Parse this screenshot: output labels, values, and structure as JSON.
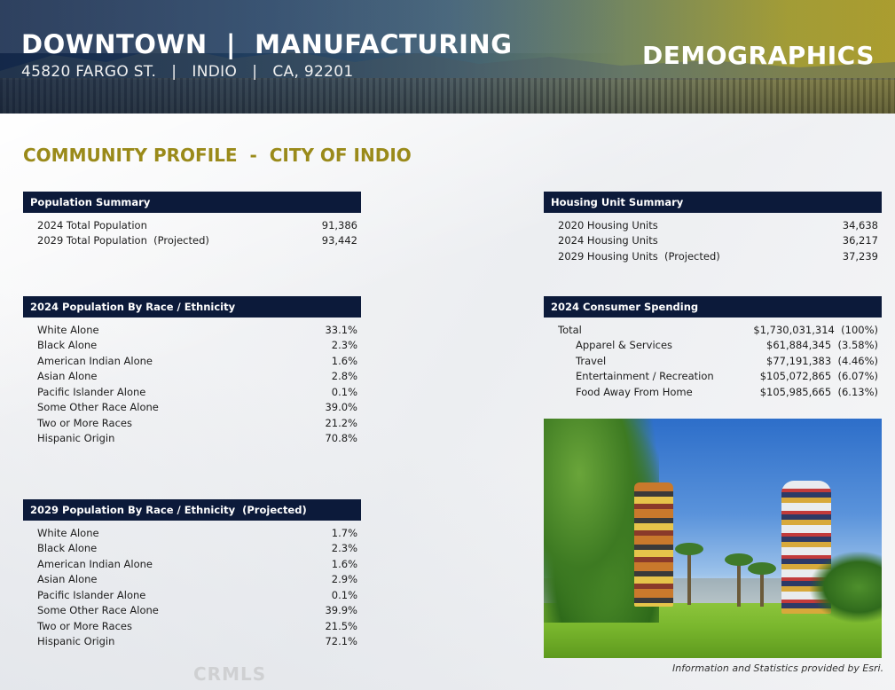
{
  "header": {
    "title": "DOWNTOWN  |  MANUFACTURING",
    "address": "45820 FARGO ST.   |   INDIO   |   CA, 92201",
    "badge": "DEMOGRAPHICS"
  },
  "section_heading": "COMMUNITY PROFILE  -  CITY OF INDIO",
  "population_summary": {
    "header": "Population Summary",
    "rows": [
      {
        "label": "2024 Total Population",
        "value": "91,386"
      },
      {
        "label": "2029 Total Population  (Projected)",
        "value": "93,442"
      }
    ]
  },
  "housing_summary": {
    "header": "Housing Unit Summary",
    "rows": [
      {
        "label": "2020 Housing Units",
        "value": "34,638"
      },
      {
        "label": "2024 Housing Units",
        "value": "36,217"
      },
      {
        "label": "2029 Housing Units  (Projected)",
        "value": "37,239"
      }
    ]
  },
  "race_2024": {
    "header": "2024 Population By Race / Ethnicity",
    "rows": [
      {
        "label": "White Alone",
        "value": "33.1%"
      },
      {
        "label": "Black Alone",
        "value": "2.3%"
      },
      {
        "label": "American Indian Alone",
        "value": "1.6%"
      },
      {
        "label": "Asian Alone",
        "value": "2.8%"
      },
      {
        "label": "Pacific Islander Alone",
        "value": "0.1%"
      },
      {
        "label": "Some Other Race Alone",
        "value": "39.0%"
      },
      {
        "label": "Two or More Races",
        "value": "21.2%"
      },
      {
        "label": "Hispanic Origin",
        "value": "70.8%"
      }
    ]
  },
  "consumer_spending": {
    "header": "2024 Consumer Spending",
    "rows": [
      {
        "label": "Total",
        "value": "$1,730,031,314  (100%)"
      },
      {
        "label": "Apparel & Services",
        "value": "$61,884,345  (3.58%)"
      },
      {
        "label": "Travel",
        "value": "$77,191,383  (4.46%)"
      },
      {
        "label": "Entertainment / Recreation",
        "value": "$105,072,865  (6.07%)"
      },
      {
        "label": "Food Away From Home",
        "value": "$105,985,665  (6.13%)"
      }
    ]
  },
  "race_2029": {
    "header": "2029 Population By Race / Ethnicity  (Projected)",
    "rows": [
      {
        "label": "White Alone",
        "value": "1.7%"
      },
      {
        "label": "Black Alone",
        "value": "2.3%"
      },
      {
        "label": "American Indian Alone",
        "value": "1.6%"
      },
      {
        "label": "Asian Alone",
        "value": "2.9%"
      },
      {
        "label": "Pacific Islander Alone",
        "value": "0.1%"
      },
      {
        "label": "Some Other Race Alone",
        "value": "39.9%"
      },
      {
        "label": "Two or More Races",
        "value": "21.5%"
      },
      {
        "label": "Hispanic Origin",
        "value": "72.1%"
      }
    ]
  },
  "credit": "Information and Statistics provided by Esri.",
  "watermark": "CRMLS",
  "colors": {
    "table_header": "#0c1a3a",
    "heading_gold": "#9a8a1a"
  }
}
